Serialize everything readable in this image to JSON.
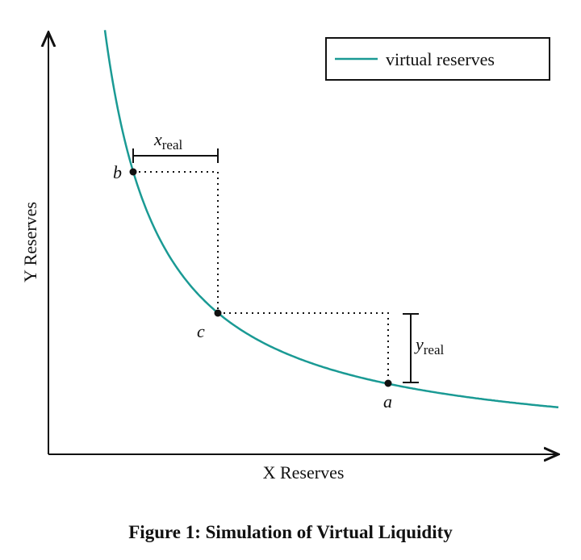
{
  "legend": {
    "label": "virtual reserves"
  },
  "axes": {
    "x_label": "X Reserves",
    "y_label": "Y Reserves"
  },
  "points": {
    "a": "a",
    "b": "b",
    "c": "c"
  },
  "brackets": {
    "x": {
      "base": "x",
      "sub": "real"
    },
    "y": {
      "base": "y",
      "sub": "real"
    }
  },
  "caption": "Figure 1: Simulation of Virtual Liquidity"
}
